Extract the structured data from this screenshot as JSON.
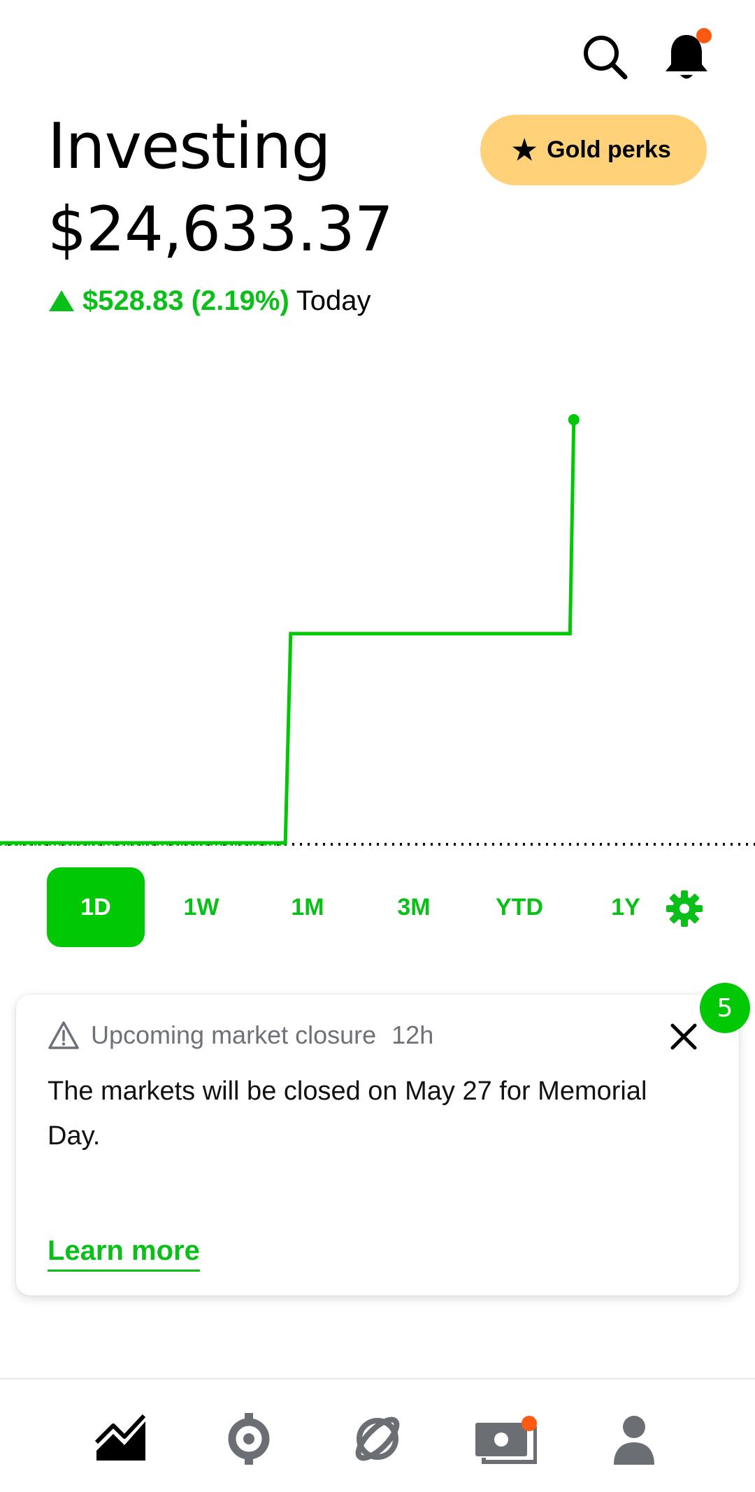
{
  "header": {
    "search_icon": "search-icon",
    "notifications_icon": "bell-icon",
    "notification_dot_color": "#ff5a13"
  },
  "title": "Investing",
  "portfolio": {
    "value": "$24,633.37",
    "change": "$528.83 (2.19%)",
    "change_period": "Today",
    "direction_icon": "triangle-up-icon"
  },
  "gold_button": {
    "label": "Gold perks",
    "icon": "star-icon"
  },
  "chart_data": {
    "type": "line",
    "title": "",
    "xlabel": "",
    "ylabel": "",
    "description_series": "portfolio value intraday",
    "x": [
      0,
      0.378,
      0.385,
      0.755,
      0.76
    ],
    "y": [
      24104.54,
      24104.54,
      24366.0,
      24366.0,
      24633.37
    ],
    "baseline": 24104.54,
    "line_color": "#00c805",
    "baseline_style": "dotted"
  },
  "range_tabs": {
    "items": [
      "1D",
      "1W",
      "1M",
      "3M",
      "YTD",
      "1Y"
    ],
    "active": "1D",
    "settings_icon": "gear-icon"
  },
  "notice_card": {
    "badge_count": "5",
    "warning_icon": "warning-triangle-icon",
    "title": "Upcoming market closure",
    "age": "12h",
    "body": "The markets will be closed on May 27 for Memorial Day.",
    "link": "Learn more",
    "close_icon": "close-icon"
  },
  "bottom_nav": {
    "items": [
      {
        "name": "investing",
        "icon": "chart-trend-icon"
      },
      {
        "name": "crypto",
        "icon": "crypto-icon"
      },
      {
        "name": "discover",
        "icon": "orbit-icon"
      },
      {
        "name": "cash",
        "icon": "cash-card-icon"
      },
      {
        "name": "account",
        "icon": "person-icon"
      }
    ],
    "accent_color": "#ff5a13"
  }
}
